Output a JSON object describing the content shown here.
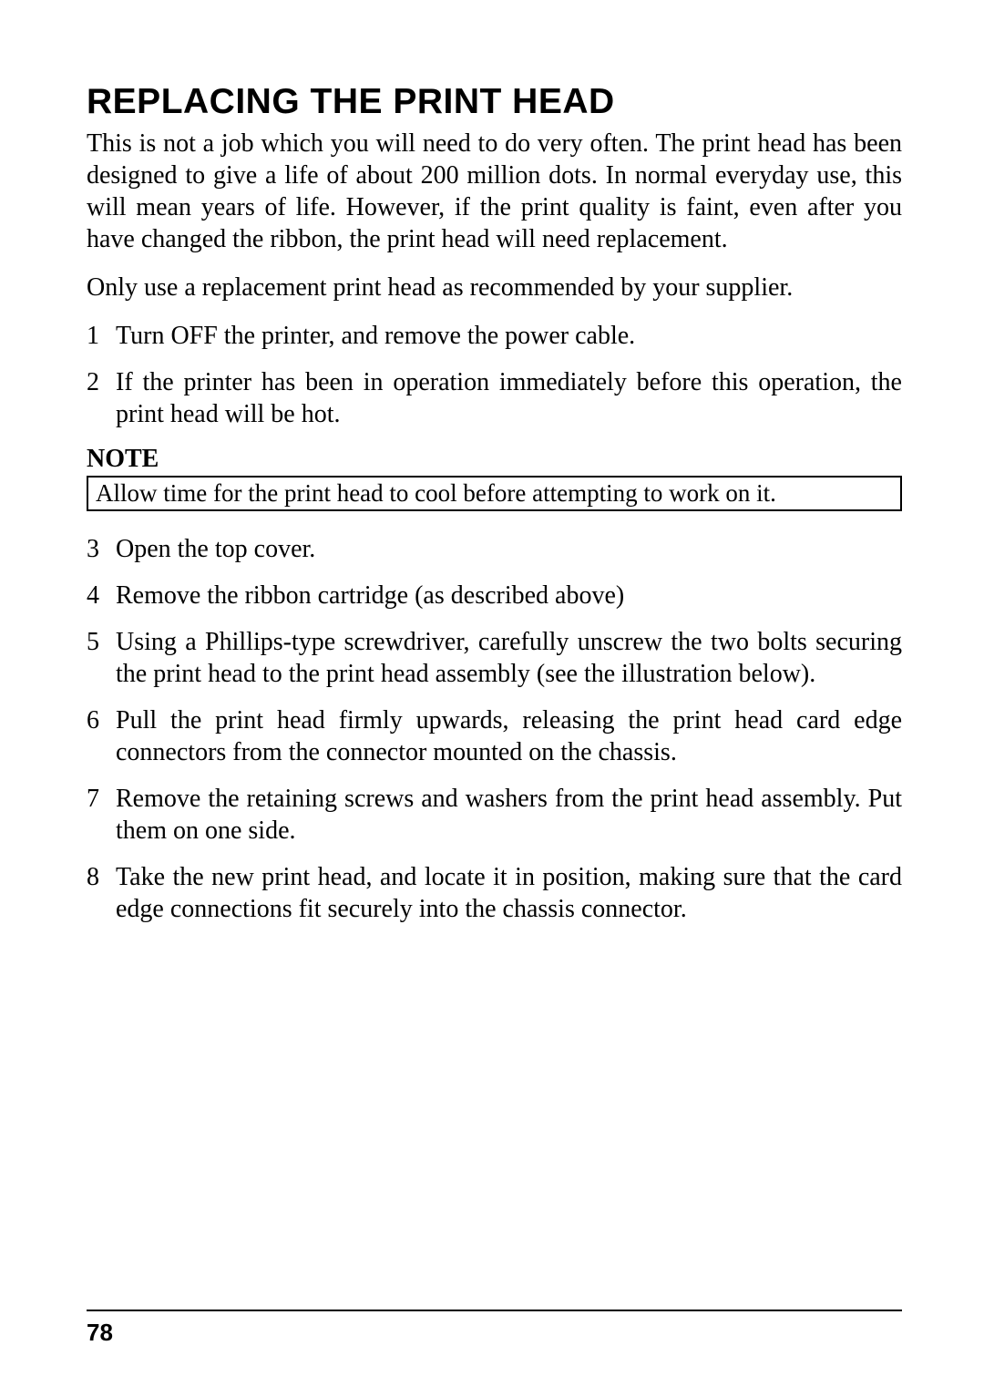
{
  "title": "REPLACING THE PRINT HEAD",
  "intro": "This is not a job which you will need to do very often. The print head has been designed to give a life of about 200 million dots. In normal everyday use, this will mean years of life. However, if the print quality is faint, even after you have changed the ribbon, the print head will need replacement.",
  "para2": "Only use a replacement print head as recommended by your supplier.",
  "steps": {
    "s1_num": "1",
    "s1_text": "Turn OFF the printer, and remove the power cable.",
    "s2_num": "2",
    "s2_text": "If the printer has been in operation immediately before this operation, the print head will be hot.",
    "s3_num": "3",
    "s3_text": "Open the top cover.",
    "s4_num": "4",
    "s4_text": "Remove the ribbon cartridge (as described above)",
    "s5_num": "5",
    "s5_text": "Using a Phillips-type screwdriver, carefully unscrew the two bolts securing the print head to the print head assembly (see the illustration below).",
    "s6_num": "6",
    "s6_text": "Pull the print head firmly upwards, releasing the print head card edge connectors from the connector mounted on the chassis.",
    "s7_num": "7",
    "s7_text": "Remove the retaining screws and washers from the print head assembly. Put them on one side.",
    "s8_num": "8",
    "s8_text": "Take the new print head, and locate it in position, making sure that the card edge connections fit securely into the chassis connector."
  },
  "note_label": "NOTE",
  "note_text": "Allow time for the print head to cool before attempting to work on it.",
  "page_number": "78"
}
